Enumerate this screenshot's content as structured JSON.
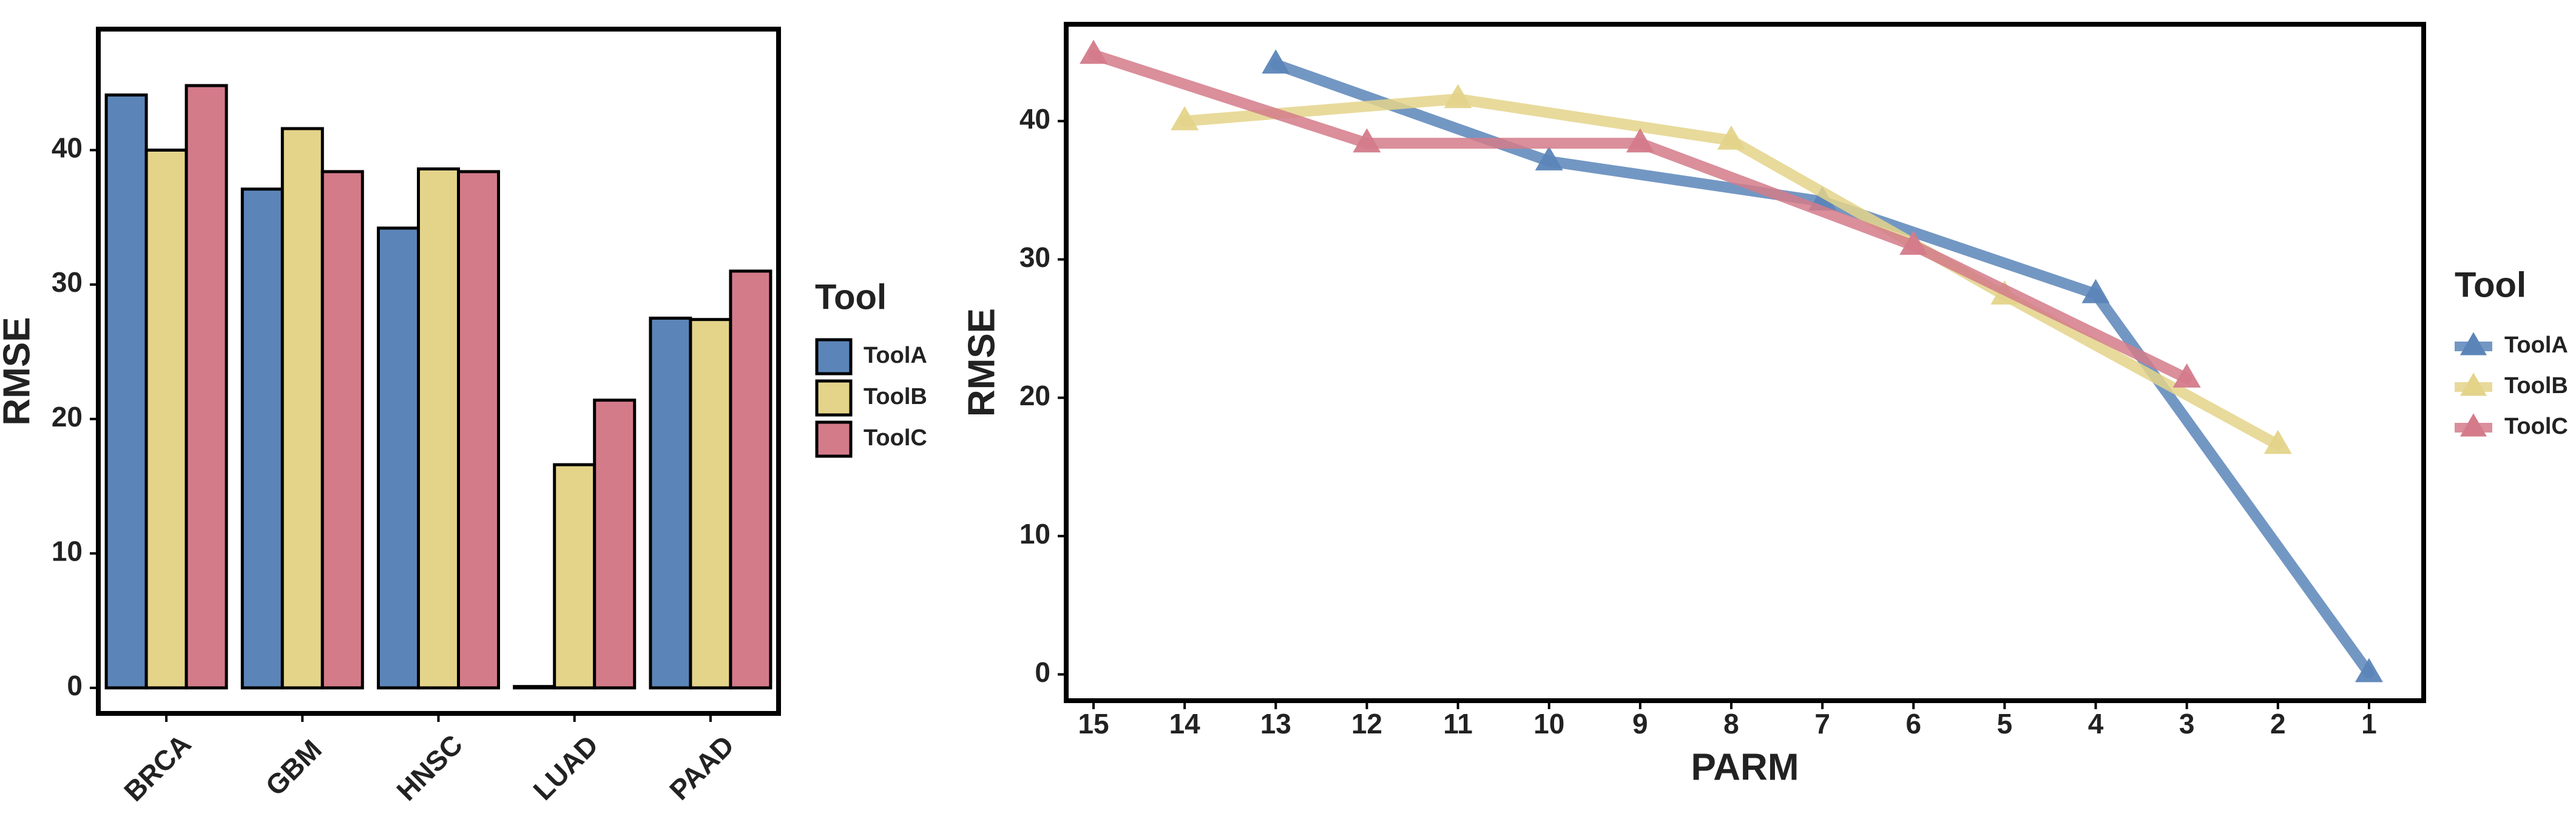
{
  "colors": {
    "ToolA": "#5b85b8",
    "ToolB": "#e4d48a",
    "ToolC": "#d47b8a",
    "axis": "#000000",
    "text": "#222222"
  },
  "chart_data": [
    {
      "type": "bar",
      "title": "",
      "xlabel": "",
      "ylabel": "RMSE",
      "categories": [
        "BRCA",
        "GBM",
        "HNSC",
        "LUAD",
        "PAAD"
      ],
      "ylim": [
        -1.9,
        49
      ],
      "yticks": [
        0,
        10,
        20,
        30,
        40
      ],
      "grid": false,
      "legend": {
        "title": "Tool",
        "position": "right",
        "entries": [
          "ToolA",
          "ToolB",
          "ToolC"
        ]
      },
      "series": [
        {
          "name": "ToolA",
          "values": [
            44.1,
            37.1,
            34.2,
            0.1,
            27.5
          ]
        },
        {
          "name": "ToolB",
          "values": [
            40.0,
            41.6,
            38.6,
            16.6,
            27.4
          ]
        },
        {
          "name": "ToolC",
          "values": [
            44.8,
            38.4,
            38.4,
            21.4,
            31.0
          ]
        }
      ]
    },
    {
      "type": "line",
      "title": "",
      "xlabel": "PARM",
      "ylabel": "RMSE",
      "x_reversed": true,
      "xticks": [
        15,
        14,
        13,
        12,
        11,
        10,
        9,
        8,
        7,
        6,
        5,
        4,
        3,
        2,
        1
      ],
      "xlim": [
        15.3,
        0.4
      ],
      "ylim": [
        -1.9,
        47
      ],
      "yticks": [
        0,
        10,
        20,
        30,
        40
      ],
      "grid": false,
      "marker": "triangle",
      "legend": {
        "title": "Tool",
        "position": "right",
        "entries": [
          "ToolA",
          "ToolB",
          "ToolC"
        ]
      },
      "series": [
        {
          "name": "ToolA",
          "points": [
            [
              13,
              44.1
            ],
            [
              10,
              37.1
            ],
            [
              7,
              34.2
            ],
            [
              4,
              27.5
            ],
            [
              1,
              0.1
            ]
          ]
        },
        {
          "name": "ToolB",
          "points": [
            [
              14,
              40.0
            ],
            [
              11,
              41.6
            ],
            [
              8,
              38.6
            ],
            [
              5,
              27.4
            ],
            [
              2,
              16.6
            ]
          ]
        },
        {
          "name": "ToolC",
          "points": [
            [
              15,
              44.8
            ],
            [
              12,
              38.4
            ],
            [
              9,
              38.4
            ],
            [
              6,
              31.0
            ],
            [
              3,
              21.4
            ]
          ]
        }
      ]
    }
  ]
}
